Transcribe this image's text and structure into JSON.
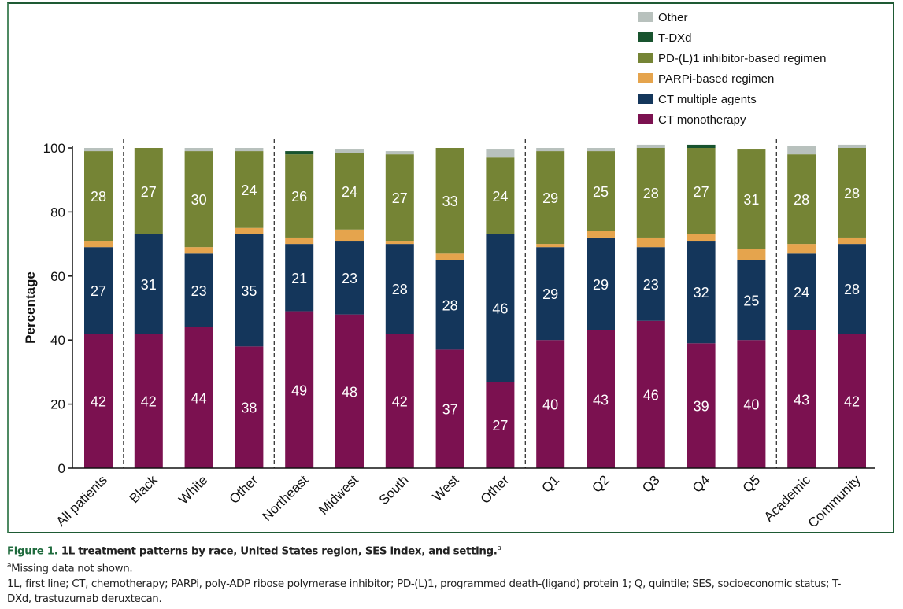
{
  "chart_data": {
    "type": "bar",
    "stacked": true,
    "ylabel": "Percentage",
    "xlabel": "",
    "ylim": [
      0,
      100
    ],
    "yticks": [
      0,
      20,
      40,
      60,
      80,
      100
    ],
    "grid": false,
    "legend_position": "top-right",
    "categories": [
      "All patients",
      "Black",
      "White",
      "Other",
      "Northeast",
      "Midwest",
      "South",
      "West",
      "Other",
      "Q1",
      "Q2",
      "Q3",
      "Q4",
      "Q5",
      "Academic",
      "Community"
    ],
    "group_separators_after": [
      0,
      3,
      8,
      13
    ],
    "series": [
      {
        "name": "CT monotherapy",
        "color": "#7b1150",
        "values": [
          42,
          42,
          44,
          38,
          49,
          48,
          42,
          37,
          27,
          40,
          43,
          46,
          39,
          40,
          43,
          42
        ],
        "labeled": true
      },
      {
        "name": "CT multiple agents",
        "color": "#14365b",
        "values": [
          27,
          31,
          23,
          35,
          21,
          23,
          28,
          28,
          46,
          29,
          29,
          23,
          32,
          25,
          24,
          28
        ],
        "labeled": true
      },
      {
        "name": "PARPi-based regimen",
        "color": "#e5a44d",
        "values": [
          2,
          0,
          2,
          2,
          2,
          3.5,
          1,
          2,
          0,
          1,
          2,
          3,
          2,
          3.5,
          3,
          2
        ],
        "labeled": false
      },
      {
        "name": "PD-(L)1 inhibitor-based regimen",
        "color": "#758435",
        "values": [
          28,
          27,
          30,
          24,
          26,
          24,
          27,
          33,
          24,
          29,
          25,
          28,
          27,
          31,
          28,
          28
        ],
        "labeled": true
      },
      {
        "name": "T-DXd",
        "color": "#18532e",
        "values": [
          0,
          0,
          0,
          0,
          1,
          0,
          0,
          0,
          0,
          0,
          0,
          0,
          1,
          0,
          0,
          0
        ],
        "labeled": false
      },
      {
        "name": "Other",
        "color": "#b8c1bd",
        "values": [
          1,
          0,
          1,
          1,
          0,
          1,
          1,
          0,
          2.5,
          1,
          1,
          1,
          0,
          0,
          2.5,
          1
        ],
        "labeled": false
      }
    ],
    "legend_order": [
      "Other",
      "T-DXd",
      "PD-(L)1 inhibitor-based regimen",
      "PARPi-based regimen",
      "CT multiple agents",
      "CT monotherapy"
    ]
  },
  "caption": {
    "figure_label": "Figure 1.",
    "title": "1L treatment patterns by race, United States region, SES index, and setting.",
    "title_sup": "a",
    "footnote_sup": "a",
    "footnote": "Missing data not shown.",
    "abbreviations_line1": "1L, first line; CT, chemotherapy; PARPi, poly-ADP ribose polymerase inhibitor; PD-(L)1, programmed death-(ligand) protein 1; Q, quintile; SES, socioeconomic status; T-",
    "abbreviations_line2": "DXd, trastuzumab deruxtecan."
  }
}
